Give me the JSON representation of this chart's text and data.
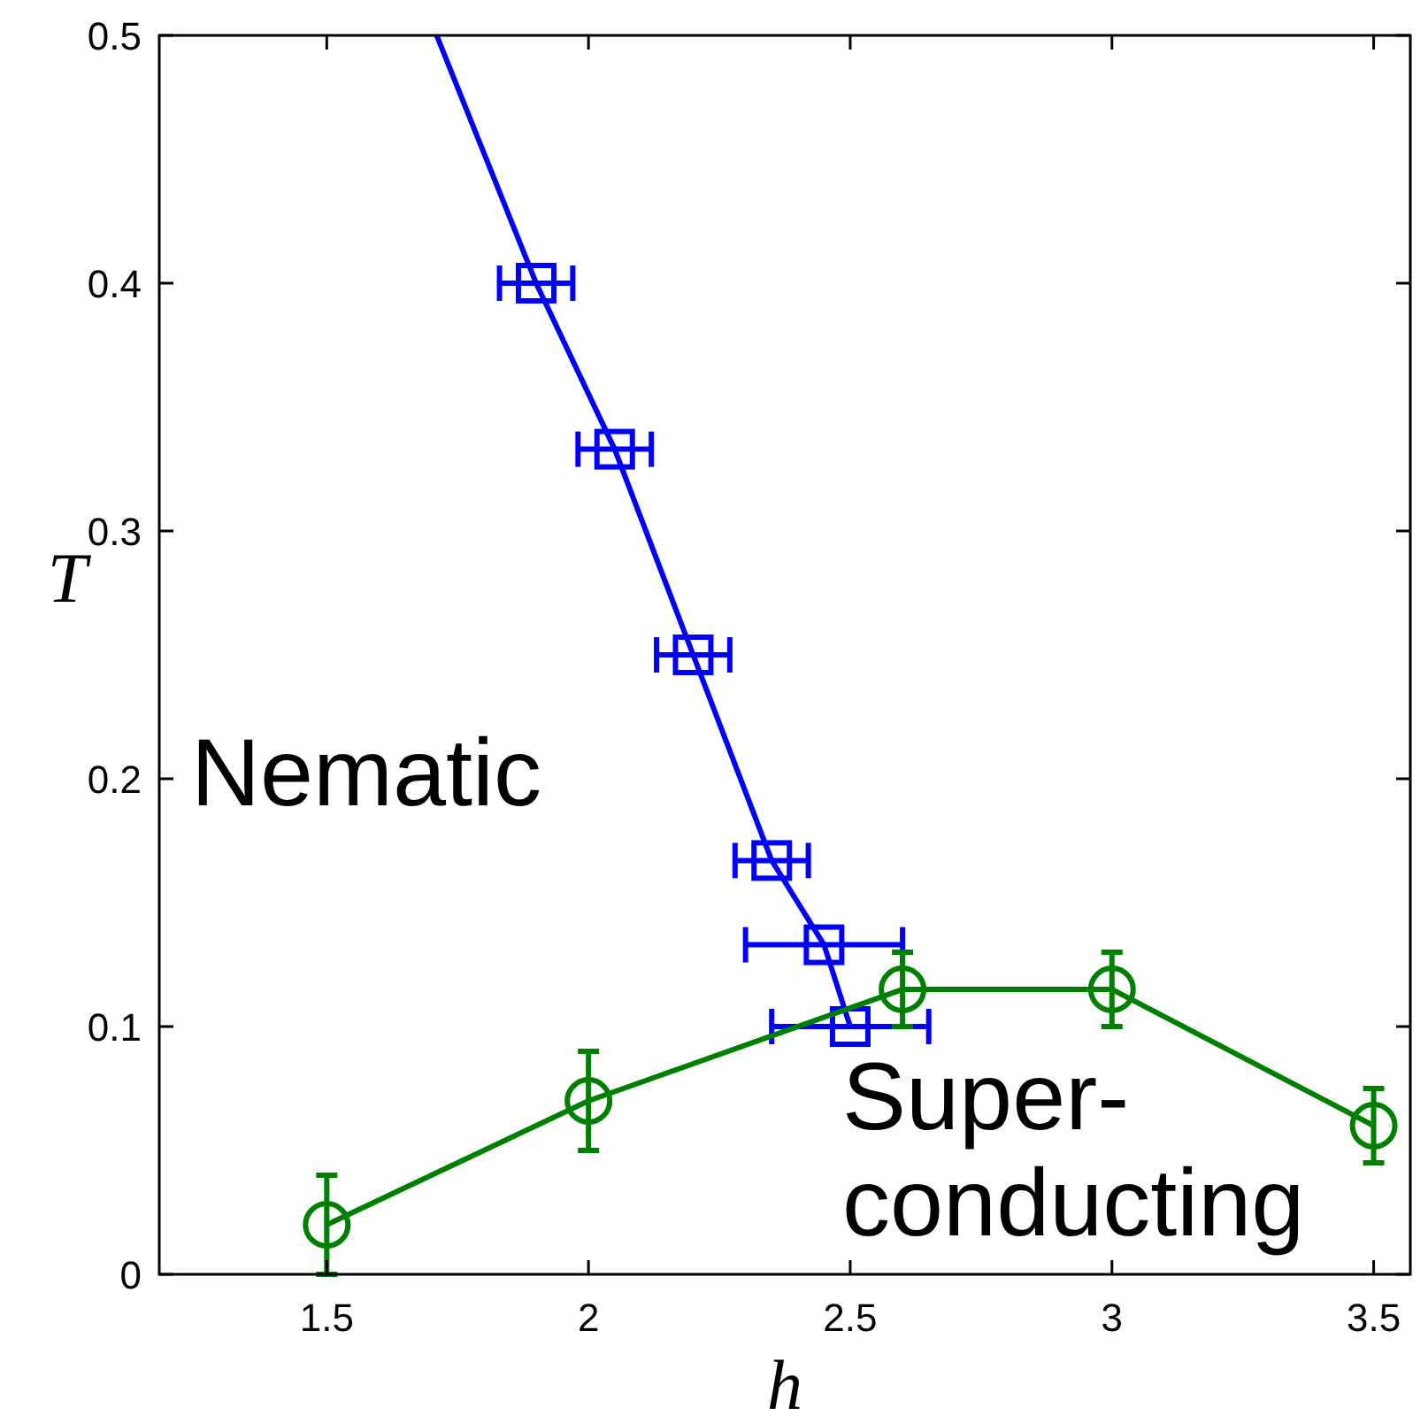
{
  "chart_data": {
    "type": "line",
    "xlabel": "h",
    "ylabel": "T",
    "xlim": [
      1.18,
      3.57
    ],
    "ylim": [
      0,
      0.5
    ],
    "xticks": [
      1.5,
      2,
      2.5,
      3,
      3.5
    ],
    "yticks": [
      0,
      0.1,
      0.2,
      0.3,
      0.4,
      0.5
    ],
    "annotations": [
      "Nematic",
      "Super-\nconducting"
    ],
    "series": [
      {
        "color": "#0000ff",
        "x": [
          1.71,
          1.9
        ],
        "values": [
          0.5,
          0.4
        ]
      },
      {
        "color": "#0000ff",
        "x": [
          1.9,
          2.05,
          2.2,
          2.35,
          2.45,
          2.5
        ],
        "values": [
          0.4,
          0.333,
          0.25,
          0.167,
          0.133,
          0.1
        ],
        "marker": "square",
        "xerrors": [
          0.07,
          0.07,
          0.07,
          0.07,
          0.15,
          0.15
        ]
      },
      {
        "color": "#008000",
        "x": [
          1.5,
          2,
          2.6,
          3,
          3.5
        ],
        "values": [
          0.02,
          0.07,
          0.115,
          0.115,
          0.06
        ],
        "marker": "circle",
        "errors": [
          0.02,
          0.02,
          0.015,
          0.015,
          0.015
        ]
      }
    ]
  }
}
